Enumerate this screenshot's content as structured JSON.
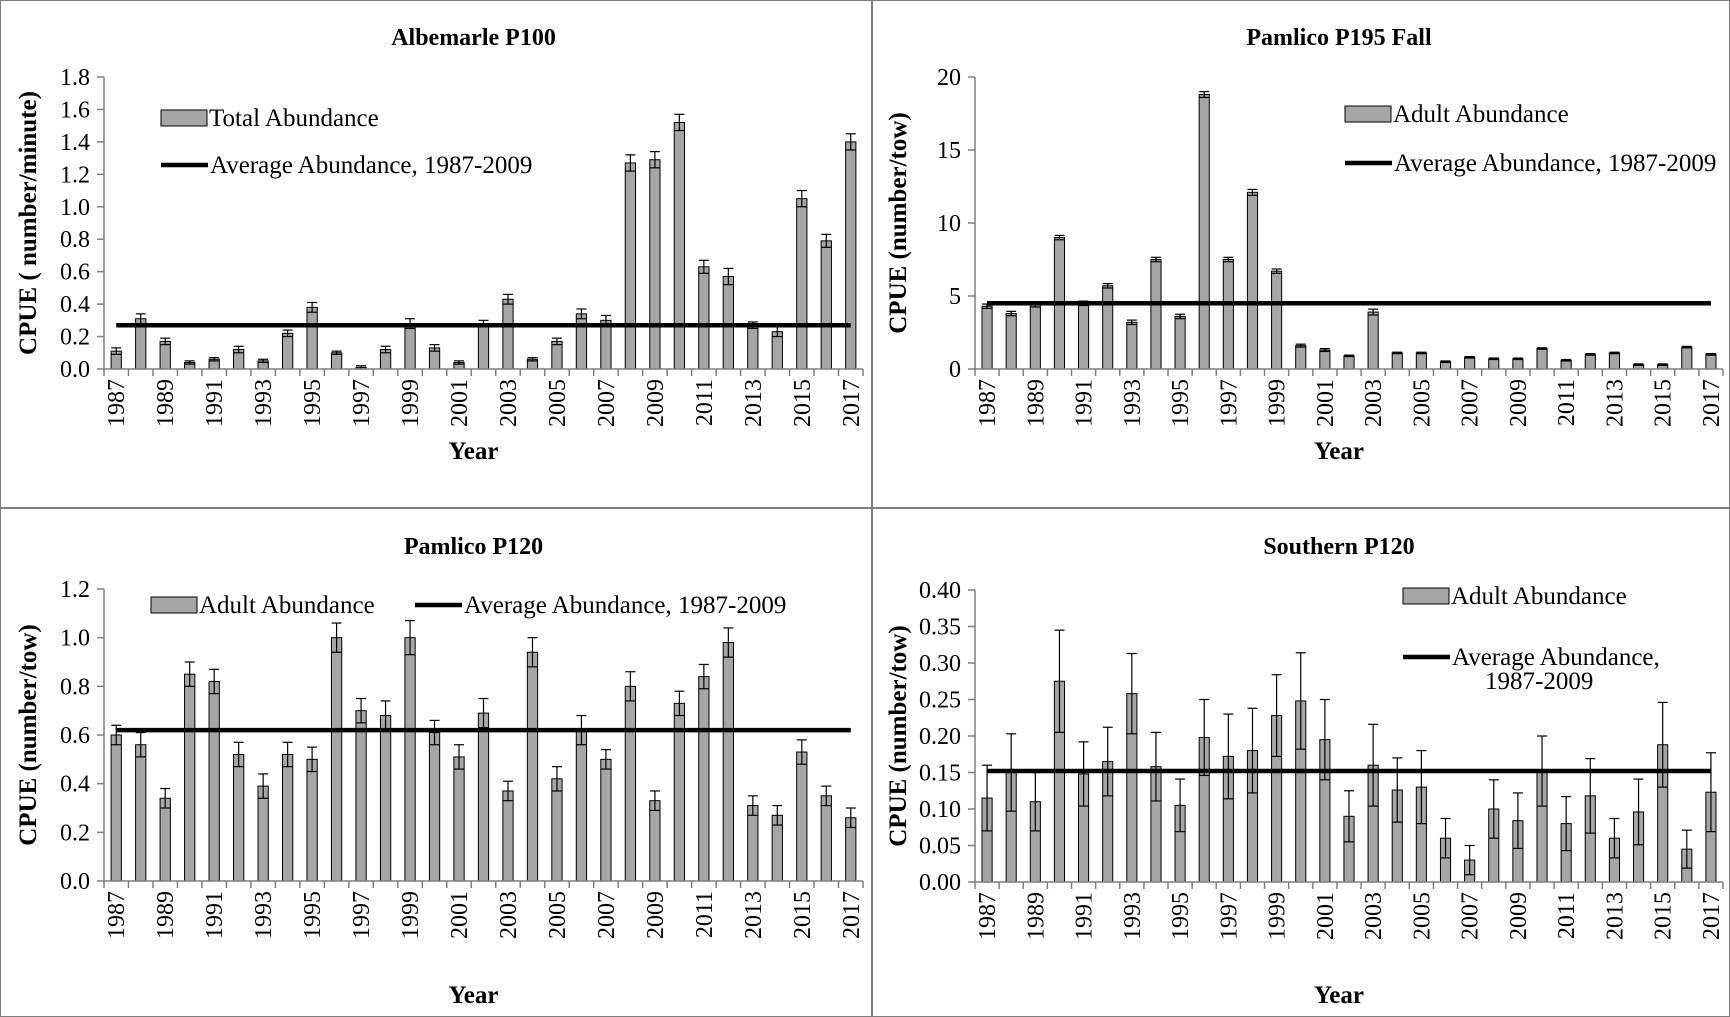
{
  "chart_data": [
    {
      "type": "bar",
      "title": "Albemarle  P100",
      "xlabel": "Year",
      "ylabel": "CPUE  ( number/minute)",
      "ylim": [
        0,
        1.8
      ],
      "yticks": [
        "0.0",
        "0.2",
        "0.4",
        "0.6",
        "0.8",
        "1.0",
        "1.2",
        "1.4",
        "1.6",
        "1.8"
      ],
      "categories": [
        1987,
        1988,
        1989,
        1990,
        1991,
        1992,
        1993,
        1994,
        1995,
        1996,
        1997,
        1998,
        1999,
        2000,
        2001,
        2002,
        2003,
        2004,
        2005,
        2006,
        2007,
        2008,
        2009,
        2010,
        2011,
        2012,
        2013,
        2014,
        2015,
        2016,
        2017
      ],
      "xtick_labels": [
        "1987",
        "1989",
        "1991",
        "1993",
        "1995",
        "1997",
        "1999",
        "2001",
        "2003",
        "2005",
        "2007",
        "2009",
        "2011",
        "2013",
        "2015",
        "2017"
      ],
      "series": [
        {
          "name": "Total Abundance",
          "kind": "bar",
          "values": [
            0.11,
            0.31,
            0.17,
            0.04,
            0.06,
            0.12,
            0.05,
            0.22,
            0.38,
            0.1,
            0.01,
            0.12,
            0.28,
            0.13,
            0.04,
            0.28,
            0.43,
            0.06,
            0.17,
            0.34,
            0.3,
            1.27,
            1.29,
            1.52,
            0.63,
            0.57,
            0.27,
            0.23,
            1.05,
            0.79,
            1.4
          ],
          "errors": [
            0.02,
            0.03,
            0.02,
            0.01,
            0.01,
            0.02,
            0.01,
            0.02,
            0.03,
            0.01,
            0.01,
            0.02,
            0.03,
            0.02,
            0.01,
            0.02,
            0.03,
            0.01,
            0.02,
            0.03,
            0.03,
            0.05,
            0.05,
            0.05,
            0.04,
            0.05,
            0.02,
            0.03,
            0.05,
            0.04,
            0.05
          ]
        },
        {
          "name": "Average Abundance, 1987-2009",
          "kind": "line",
          "value": 0.27
        }
      ],
      "legend": {
        "position": "top-left",
        "labels": [
          "Total Abundance",
          "Average Abundance, 1987-2009"
        ]
      },
      "colors": {
        "bar": "#a6a6a6",
        "line": "#000000"
      }
    },
    {
      "type": "bar",
      "title": "Pamlico  P195 Fall",
      "xlabel": "Year",
      "ylabel": "CPUE  (number/tow)",
      "ylim": [
        0,
        20
      ],
      "yticks": [
        "0",
        "5",
        "10",
        "15",
        "20"
      ],
      "categories": [
        1987,
        1988,
        1989,
        1990,
        1991,
        1992,
        1993,
        1994,
        1995,
        1996,
        1997,
        1998,
        1999,
        2000,
        2001,
        2002,
        2003,
        2004,
        2005,
        2006,
        2007,
        2008,
        2009,
        2010,
        2011,
        2012,
        2013,
        2014,
        2015,
        2016,
        2017
      ],
      "xtick_labels": [
        "1987",
        "1989",
        "1991",
        "1993",
        "1995",
        "1997",
        "1999",
        "2001",
        "2003",
        "2005",
        "2007",
        "2009",
        "2011",
        "2013",
        "2015",
        "2017"
      ],
      "series": [
        {
          "name": "Adult Abundance",
          "kind": "bar",
          "values": [
            4.3,
            3.8,
            4.4,
            9.0,
            4.5,
            5.7,
            3.2,
            7.5,
            3.6,
            18.8,
            7.5,
            12.1,
            6.7,
            1.6,
            1.3,
            0.9,
            3.9,
            1.1,
            1.1,
            0.5,
            0.8,
            0.7,
            0.7,
            1.4,
            0.6,
            1.0,
            1.1,
            0.3,
            0.3,
            1.5,
            1.0
          ],
          "errors": [
            0.15,
            0.15,
            0.15,
            0.15,
            0.15,
            0.15,
            0.15,
            0.15,
            0.15,
            0.2,
            0.15,
            0.2,
            0.15,
            0.1,
            0.1,
            0.05,
            0.2,
            0.05,
            0.05,
            0.05,
            0.05,
            0.05,
            0.05,
            0.05,
            0.05,
            0.05,
            0.05,
            0.05,
            0.05,
            0.05,
            0.05
          ]
        },
        {
          "name": "Average Abundance, 1987-2009",
          "kind": "line",
          "value": 4.5
        }
      ],
      "legend": {
        "position": "top-right",
        "labels": [
          "Adult Abundance",
          "Average Abundance, 1987-2009"
        ]
      },
      "colors": {
        "bar": "#a6a6a6",
        "line": "#000000"
      }
    },
    {
      "type": "bar",
      "title": "Pamlico  P120",
      "xlabel": "Year",
      "ylabel": "CPUE  (number/tow)",
      "ylim": [
        0,
        1.2
      ],
      "yticks": [
        "0.0",
        "0.2",
        "0.4",
        "0.6",
        "0.8",
        "1.0",
        "1.2"
      ],
      "categories": [
        1987,
        1988,
        1989,
        1990,
        1991,
        1992,
        1993,
        1994,
        1995,
        1996,
        1997,
        1998,
        1999,
        2000,
        2001,
        2002,
        2003,
        2004,
        2005,
        2006,
        2007,
        2008,
        2009,
        2010,
        2011,
        2012,
        2013,
        2014,
        2015,
        2016,
        2017
      ],
      "xtick_labels": [
        "1987",
        "1989",
        "1991",
        "1993",
        "1995",
        "1997",
        "1999",
        "2001",
        "2003",
        "2005",
        "2007",
        "2009",
        "2011",
        "2013",
        "2015",
        "2017"
      ],
      "series": [
        {
          "name": "Adult Abundance",
          "kind": "bar",
          "values": [
            0.6,
            0.56,
            0.34,
            0.85,
            0.82,
            0.52,
            0.39,
            0.52,
            0.5,
            1.0,
            0.7,
            0.68,
            1.0,
            0.61,
            0.51,
            0.69,
            0.37,
            0.94,
            0.42,
            0.62,
            0.5,
            0.8,
            0.33,
            0.73,
            0.84,
            0.98,
            0.31,
            0.27,
            0.53,
            0.35,
            0.26
          ],
          "errors": [
            0.04,
            0.05,
            0.04,
            0.05,
            0.05,
            0.05,
            0.05,
            0.05,
            0.05,
            0.06,
            0.05,
            0.06,
            0.07,
            0.05,
            0.05,
            0.06,
            0.04,
            0.06,
            0.05,
            0.06,
            0.04,
            0.06,
            0.04,
            0.05,
            0.05,
            0.06,
            0.04,
            0.04,
            0.05,
            0.04,
            0.04
          ]
        },
        {
          "name": "Average Abundance, 1987-2009",
          "kind": "line",
          "value": 0.62
        }
      ],
      "legend": {
        "position": "top",
        "labels": [
          "Adult Abundance",
          "Average Abundance, 1987-2009"
        ]
      },
      "colors": {
        "bar": "#a6a6a6",
        "line": "#000000"
      }
    },
    {
      "type": "bar",
      "title": "Southern  P120",
      "xlabel": "Year",
      "ylabel": "CPUE  (number/tow)",
      "ylim": [
        0,
        0.4
      ],
      "yticks": [
        "0.00",
        "0.05",
        "0.10",
        "0.15",
        "0.20",
        "0.25",
        "0.30",
        "0.35",
        "0.40"
      ],
      "categories": [
        1987,
        1988,
        1989,
        1990,
        1991,
        1992,
        1993,
        1994,
        1995,
        1996,
        1997,
        1998,
        1999,
        2000,
        2001,
        2002,
        2003,
        2004,
        2005,
        2006,
        2007,
        2008,
        2009,
        2010,
        2011,
        2012,
        2013,
        2014,
        2015,
        2016,
        2017
      ],
      "xtick_labels": [
        "1987",
        "1989",
        "1991",
        "1993",
        "1995",
        "1997",
        "1999",
        "2001",
        "2003",
        "2005",
        "2007",
        "2009",
        "2011",
        "2013",
        "2015",
        "2017"
      ],
      "series": [
        {
          "name": "Adult Abundance",
          "kind": "bar",
          "values": [
            0.115,
            0.15,
            0.11,
            0.275,
            0.148,
            0.165,
            0.258,
            0.158,
            0.105,
            0.198,
            0.172,
            0.18,
            0.228,
            0.248,
            0.195,
            0.09,
            0.16,
            0.126,
            0.13,
            0.06,
            0.03,
            0.1,
            0.084,
            0.152,
            0.08,
            0.118,
            0.06,
            0.096,
            0.188,
            0.045,
            0.123
          ],
          "errors": [
            0.045,
            0.053,
            0.04,
            0.07,
            0.044,
            0.047,
            0.055,
            0.047,
            0.036,
            0.052,
            0.058,
            0.058,
            0.056,
            0.066,
            0.055,
            0.035,
            0.056,
            0.044,
            0.05,
            0.027,
            0.02,
            0.04,
            0.038,
            0.048,
            0.037,
            0.051,
            0.027,
            0.045,
            0.058,
            0.026,
            0.054
          ]
        },
        {
          "name": "Average Abundance, 1987-2009",
          "kind": "line",
          "value": 0.152
        }
      ],
      "legend": {
        "position": "top-right",
        "labels": [
          "Adult Abundance",
          "Average Abundance,",
          "1987-2009"
        ]
      },
      "colors": {
        "bar": "#a6a6a6",
        "line": "#000000"
      }
    }
  ]
}
